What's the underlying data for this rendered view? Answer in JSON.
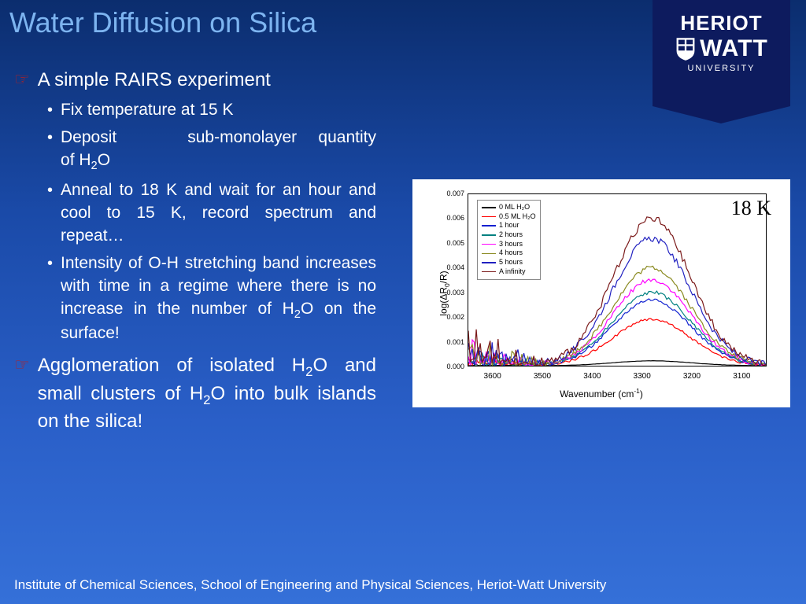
{
  "title": "Water Diffusion on Silica",
  "logo": {
    "line1": "HERIOT",
    "line2": "WATT",
    "line3": "UNIVERSITY"
  },
  "bullets": {
    "b1": "A simple RAIRS experiment",
    "s1": "Fix temperature at 15 K",
    "s2_pre": "Deposit",
    "s2_post": "sub-monolayer quantity of H",
    "s2_end": "O",
    "s3": "Anneal to 18 K and wait for an hour and cool to 15 K, record spectrum and repeat…",
    "s4_a": "Intensity of O-H stretching band increases with time in a regime where there is no increase in the number of H",
    "s4_b": "O on the surface!",
    "b2_a": "Agglomeration of isolated H",
    "b2_b": "O and small clusters of H",
    "b2_c": "O into bulk islands on the silica!"
  },
  "footer": "Institute of Chemical Sciences, School of Engineering and Physical Sciences, Heriot-Watt University",
  "chart": {
    "type": "line",
    "temp_label": "18 K",
    "xlabel_a": "Wavenumber (cm",
    "xlabel_b": ")",
    "ylabel_a": "log(ΔR",
    "ylabel_b": "/R)",
    "xlim": [
      3650,
      3050
    ],
    "ylim": [
      0,
      0.007
    ],
    "xticks": [
      3600,
      3500,
      3400,
      3300,
      3200,
      3100
    ],
    "yticks": [
      "0.000",
      "0.001",
      "0.002",
      "0.003",
      "0.004",
      "0.005",
      "0.006",
      "0.007"
    ],
    "background_color": "#ffffff",
    "series": [
      {
        "label": "0 ML H₂O",
        "color": "#000000",
        "amp": 0.0002
      },
      {
        "label": "0.5 ML H₂O",
        "color": "#ff0000",
        "amp": 0.0019
      },
      {
        "label": "1 hour",
        "color": "#1020d0",
        "amp": 0.0027
      },
      {
        "label": "2 hours",
        "color": "#008080",
        "amp": 0.003
      },
      {
        "label": "3 hours",
        "color": "#ff00ff",
        "amp": 0.0035
      },
      {
        "label": "4 hours",
        "color": "#8a8a20",
        "amp": 0.004
      },
      {
        "label": "5 hours",
        "color": "#2020c0",
        "amp": 0.0052
      },
      {
        "label": "A infinity",
        "color": "#7a1818",
        "amp": 0.006
      }
    ],
    "peak_x": 3280,
    "noise_region": [
      3650,
      3480
    ],
    "line_width": 1.2
  }
}
